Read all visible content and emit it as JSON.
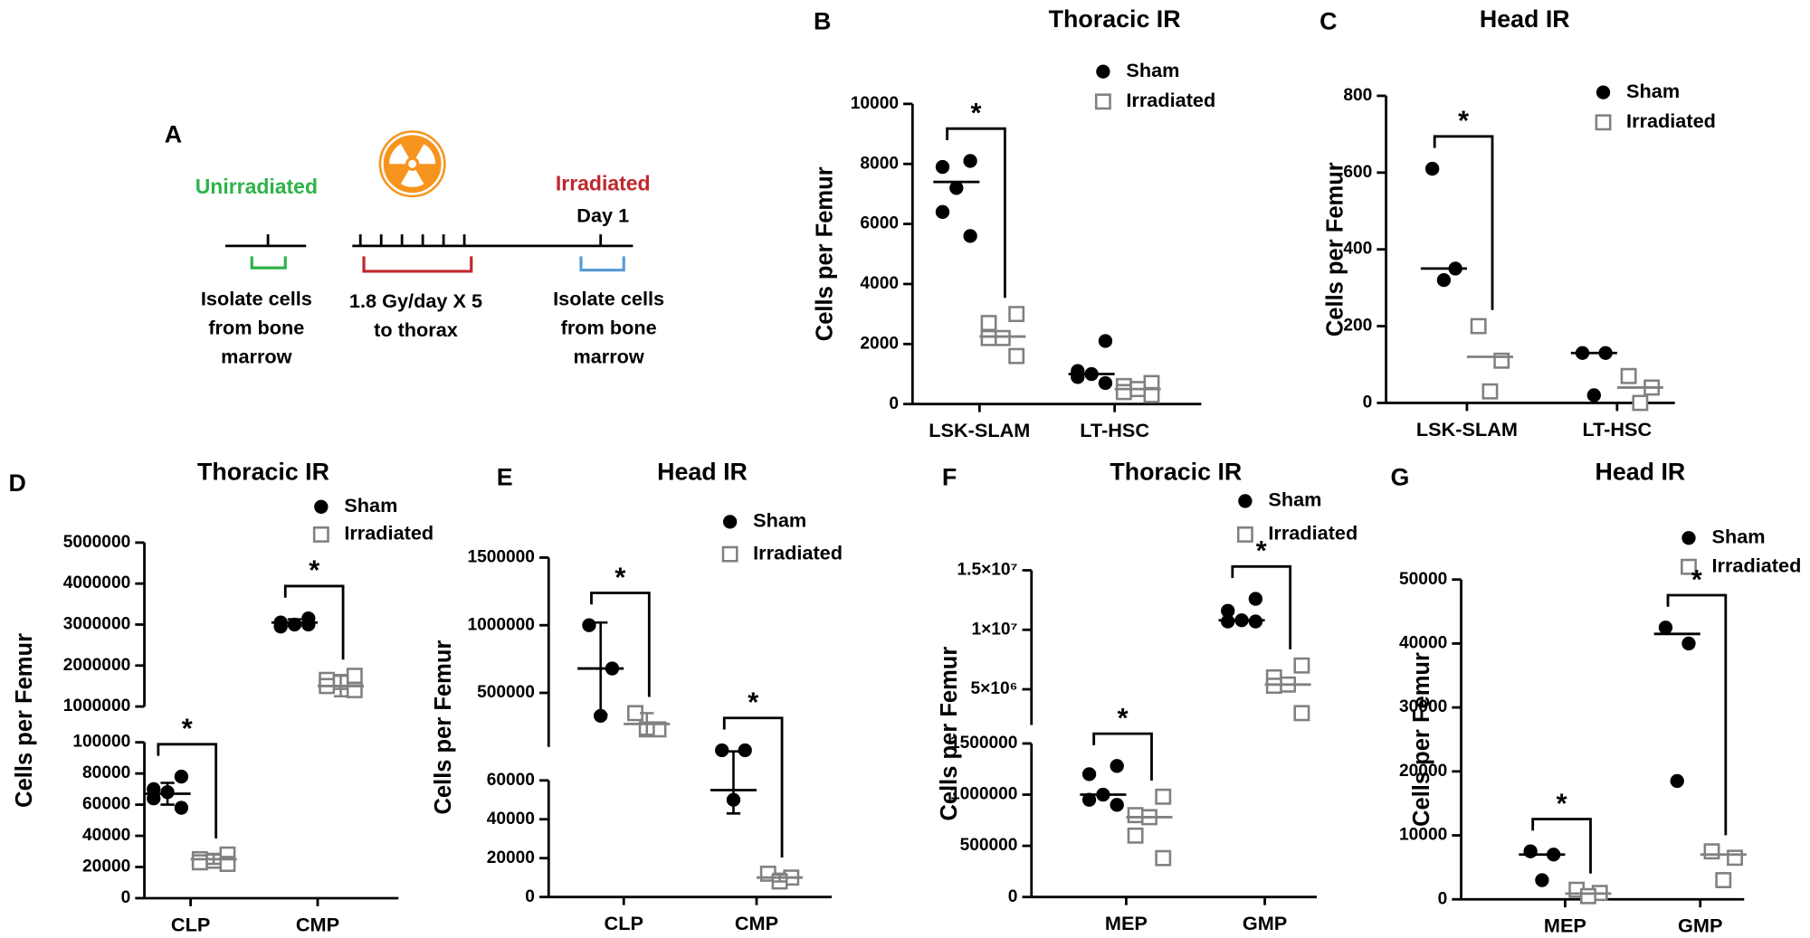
{
  "panel_a": {
    "label": "A",
    "unirradiated": "Unirradiated",
    "irradiated": "Irradiated",
    "day": "Day 1",
    "isolate_left": [
      "Isolate cells",
      "from bone",
      "marrow"
    ],
    "dose": [
      "1.8 Gy/day X 5",
      "to thorax"
    ],
    "isolate_right": [
      "Isolate cells",
      "from bone",
      "marrow"
    ]
  },
  "chart_data": [
    {
      "type": "dot",
      "label": "B",
      "title": "Thoracic IR",
      "ylabel": "Cells per Femur",
      "categories": [
        "LSK-SLAM",
        "LT-HSC"
      ],
      "y_segments": [
        {
          "ylim": [
            0,
            10000
          ],
          "yticks": [
            0,
            2000,
            4000,
            6000,
            8000,
            10000
          ]
        }
      ],
      "series": [
        {
          "name": "Sham",
          "color": "#000000",
          "marker": "circle",
          "values": [
            [
              8100,
              7900,
              7200,
              6400,
              5600
            ],
            [
              2100,
              1100,
              1000,
              900,
              700
            ]
          ],
          "means": [
            7400,
            1000
          ]
        },
        {
          "name": "Irradiated",
          "color": "#808080",
          "marker": "square",
          "values": [
            [
              3000,
              2700,
              2200,
              2200,
              1600
            ],
            [
              700,
              600,
              500,
              400,
              300
            ]
          ],
          "means": [
            2250,
            500
          ]
        }
      ],
      "significance": [
        "*",
        null
      ]
    },
    {
      "type": "dot",
      "label": "C",
      "title": "Head IR",
      "ylabel": "Cells per Femur",
      "categories": [
        "LSK-SLAM",
        "LT-HSC"
      ],
      "y_segments": [
        {
          "ylim": [
            0,
            800
          ],
          "yticks": [
            0,
            200,
            400,
            600,
            800
          ]
        }
      ],
      "series": [
        {
          "name": "Sham",
          "color": "#000000",
          "marker": "circle",
          "values": [
            [
              610,
              350,
              320
            ],
            [
              130,
              130,
              20
            ]
          ],
          "means": [
            350,
            130
          ]
        },
        {
          "name": "Irradiated",
          "color": "#808080",
          "marker": "square",
          "values": [
            [
              200,
              110,
              30
            ],
            [
              70,
              40,
              0
            ]
          ],
          "means": [
            120,
            40
          ]
        }
      ],
      "significance": [
        "*",
        null
      ]
    },
    {
      "type": "dot",
      "label": "D",
      "title": "Thoracic IR",
      "ylabel": "Cells per Femur",
      "categories": [
        "CLP",
        "CMP"
      ],
      "y_segments": [
        {
          "ylim": [
            0,
            100000
          ],
          "yticks": [
            0,
            20000,
            40000,
            60000,
            80000,
            100000
          ]
        },
        {
          "ylim": [
            1000000,
            5000000
          ],
          "yticks": [
            1000000,
            2000000,
            3000000,
            4000000,
            5000000
          ]
        }
      ],
      "series": [
        {
          "name": "Sham",
          "color": "#000000",
          "marker": "circle",
          "values": [
            [
              78000,
              70000,
              68000,
              64000,
              58000
            ],
            [
              3150000,
              3050000,
              3000000,
              2950000,
              3000000
            ]
          ],
          "means": [
            67000,
            3050000
          ],
          "errors": [
            7000,
            80000
          ]
        },
        {
          "name": "Irradiated",
          "color": "#808080",
          "marker": "square",
          "values": [
            [
              28000,
              25000,
              24000,
              23000,
              22000
            ],
            [
              1750000,
              1650000,
              1600000,
              1500000,
              1400000
            ]
          ],
          "means": [
            25000,
            1500000
          ],
          "errors": [
            3000,
            250000
          ]
        }
      ],
      "significance": [
        "*",
        "*"
      ]
    },
    {
      "type": "dot",
      "label": "E",
      "title": "Head IR",
      "ylabel": "Cells per Femur",
      "categories": [
        "CLP",
        "CMP"
      ],
      "y_segments": [
        {
          "ylim": [
            0,
            60000
          ],
          "yticks": [
            0,
            20000,
            40000,
            60000
          ]
        },
        {
          "ylim": [
            100000,
            1500000
          ],
          "yticks": [
            500000,
            1000000,
            1500000
          ]
        }
      ],
      "series": [
        {
          "name": "Sham",
          "color": "#000000",
          "marker": "circle",
          "values": [
            [
              1000000,
              680000,
              330000
            ],
            [
              75000,
              75000,
              50000
            ]
          ],
          "means": [
            680000,
            55000
          ],
          "errors": [
            340000,
            12000
          ]
        },
        {
          "name": "Irradiated",
          "color": "#808080",
          "marker": "square",
          "values": [
            [
              350000,
              230000,
              230000
            ],
            [
              12000,
              10000,
              8000
            ]
          ],
          "means": [
            270000,
            10000
          ],
          "errors": [
            80000,
            2000
          ]
        }
      ],
      "significance": [
        "*",
        "*"
      ]
    },
    {
      "type": "dot",
      "label": "F",
      "title": "Thoracic IR",
      "ylabel": "Cells per Femur",
      "categories": [
        "MEP",
        "GMP"
      ],
      "y_segments": [
        {
          "ylim": [
            0,
            1500000
          ],
          "yticks": [
            0,
            500000,
            1000000,
            1500000
          ]
        },
        {
          "ylim": [
            2000000,
            15000000
          ],
          "yticks": [
            {
              "value": 5000000,
              "label": "5×10⁶"
            },
            {
              "value": 10000000,
              "label": "1×10⁷"
            },
            {
              "value": 15000000,
              "label": "1.5×10⁷"
            }
          ]
        }
      ],
      "series": [
        {
          "name": "Sham",
          "color": "#000000",
          "marker": "circle",
          "values": [
            [
              1280000,
              1200000,
              1000000,
              950000,
              900000
            ],
            [
              12600000,
              11600000,
              10800000,
              10700000,
              10700000
            ]
          ],
          "means": [
            1000000,
            10800000
          ]
        },
        {
          "name": "Irradiated",
          "color": "#808080",
          "marker": "square",
          "values": [
            [
              980000,
              800000,
              780000,
              600000,
              380000
            ],
            [
              7000000,
              6000000,
              5400000,
              5300000,
              3000000
            ]
          ],
          "means": [
            780000,
            5400000
          ]
        }
      ],
      "significance": [
        "*",
        "*"
      ]
    },
    {
      "type": "dot",
      "label": "G",
      "title": "Head IR",
      "ylabel": "Cells per Femur",
      "categories": [
        "MEP",
        "GMP"
      ],
      "y_segments": [
        {
          "ylim": [
            0,
            50000
          ],
          "yticks": [
            0,
            10000,
            20000,
            30000,
            40000,
            50000
          ]
        }
      ],
      "series": [
        {
          "name": "Sham",
          "color": "#000000",
          "marker": "circle",
          "values": [
            [
              7500,
              7000,
              3000
            ],
            [
              42500,
              40000,
              18500
            ]
          ],
          "means": [
            7000,
            41500
          ]
        },
        {
          "name": "Irradiated",
          "color": "#808080",
          "marker": "square",
          "values": [
            [
              1500,
              1000,
              500
            ],
            [
              7500,
              6500,
              3000
            ]
          ],
          "means": [
            900,
            7000
          ]
        }
      ],
      "significance": [
        "*",
        "*"
      ]
    }
  ]
}
